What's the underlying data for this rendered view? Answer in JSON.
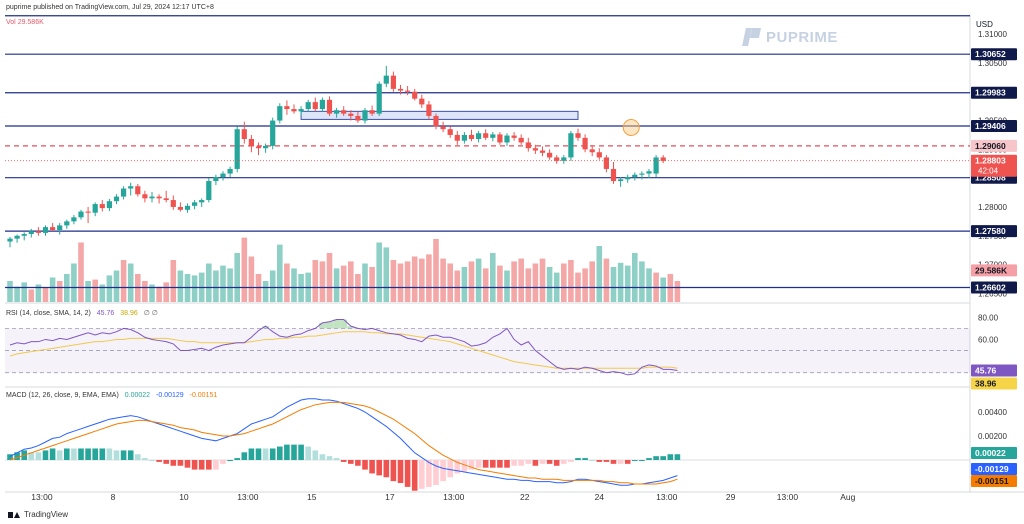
{
  "header": {
    "publisher_line": "puprime published on TradingView.com, Jul 29, 2024 12:17 UTC+8",
    "volume_label": "Vol",
    "volume_value": "29.586K"
  },
  "brand": {
    "name": "PUPRIME"
  },
  "footer": {
    "logo_text": "TradingView"
  },
  "chart_data": {
    "type": "candlestick",
    "currency": "USD",
    "price_axis": {
      "range": [
        1.2635,
        1.3135
      ],
      "ticks": [
        "1.31000",
        "1.30500",
        "1.30000",
        "1.29500",
        "1.29000",
        "1.28500",
        "1.28000",
        "1.27500",
        "1.27000",
        "1.26500"
      ]
    },
    "x_axis": {
      "labels": [
        "13:00",
        "8",
        "10",
        "13:00",
        "15",
        "17",
        "13:00",
        "22",
        "24",
        "13:00",
        "29",
        "13:00",
        "Aug"
      ],
      "label_slots": [
        4.5,
        14.5,
        24.5,
        33.5,
        42.5,
        53.5,
        62.5,
        72.5,
        83,
        92.5,
        101.5,
        109.5,
        118
      ]
    },
    "levels": [
      {
        "label": "1.30652",
        "value": 1.30652,
        "style": "solid",
        "color": "#1e2f8c"
      },
      {
        "label": "1.29983",
        "value": 1.29983,
        "style": "solid",
        "color": "#1e2f8c"
      },
      {
        "label": "1.29406",
        "value": 1.29406,
        "style": "solid",
        "color": "#1e2f8c"
      },
      {
        "label": "1.29060",
        "value": 1.2906,
        "style": "dashed",
        "color": "#e54f5c"
      },
      {
        "label": "1.28508",
        "value": 1.28508,
        "style": "solid",
        "color": "#1e2f8c"
      },
      {
        "label": "1.27580",
        "value": 1.2758,
        "style": "solid",
        "color": "#1e2f8c"
      },
      {
        "label": "1.26602",
        "value": 1.26602,
        "style": "solid",
        "color": "#1e2f8c"
      }
    ],
    "top_line": {
      "value": 1.3132
    },
    "current_price": {
      "label": "1.28803",
      "countdown": "42:04",
      "value": 1.28803
    },
    "volume_badge": {
      "label": "29.586K",
      "value": 1.269
    },
    "zone": {
      "from_slot": 41,
      "to_slot": 80,
      "top": 1.2966,
      "bottom": 1.2952
    },
    "marker": {
      "slot": 87.5,
      "value": 1.2938
    },
    "colors": {
      "up": "#26a69a",
      "down": "#ef5350",
      "vol_up": "#8fd0c6",
      "vol_down": "#f3a7a7"
    },
    "candles": [
      [
        1.274,
        1.2748,
        1.273,
        1.2745
      ],
      [
        1.2745,
        1.2752,
        1.2738,
        1.275
      ],
      [
        1.275,
        1.2756,
        1.2742,
        1.2753
      ],
      [
        1.2753,
        1.2762,
        1.2747,
        1.2758
      ],
      [
        1.2758,
        1.2765,
        1.275,
        1.2755
      ],
      [
        1.2755,
        1.2768,
        1.275,
        1.2765
      ],
      [
        1.2765,
        1.2772,
        1.2758,
        1.276
      ],
      [
        1.276,
        1.2772,
        1.2752,
        1.2768
      ],
      [
        1.2768,
        1.2778,
        1.2762,
        1.2775
      ],
      [
        1.2775,
        1.2786,
        1.277,
        1.2782
      ],
      [
        1.2782,
        1.2795,
        1.2778,
        1.2792
      ],
      [
        1.2792,
        1.28,
        1.2772,
        1.279
      ],
      [
        1.279,
        1.2808,
        1.2784,
        1.2805
      ],
      [
        1.2805,
        1.2812,
        1.2792,
        1.2798
      ],
      [
        1.2798,
        1.2814,
        1.2793,
        1.281
      ],
      [
        1.281,
        1.2822,
        1.2805,
        1.2818
      ],
      [
        1.2818,
        1.2836,
        1.2813,
        1.2832
      ],
      [
        1.2832,
        1.2842,
        1.282,
        1.2836
      ],
      [
        1.2836,
        1.284,
        1.2818,
        1.2822
      ],
      [
        1.2822,
        1.2828,
        1.2808,
        1.2815
      ],
      [
        1.2815,
        1.2826,
        1.2808,
        1.2818
      ],
      [
        1.2818,
        1.2822,
        1.2806,
        1.2815
      ],
      [
        1.2815,
        1.2828,
        1.2808,
        1.2812
      ],
      [
        1.2812,
        1.282,
        1.2795,
        1.28
      ],
      [
        1.28,
        1.2808,
        1.2792,
        1.2795
      ],
      [
        1.2795,
        1.2806,
        1.279,
        1.2802
      ],
      [
        1.2802,
        1.2812,
        1.2796,
        1.2808
      ],
      [
        1.2808,
        1.2815,
        1.28,
        1.2812
      ],
      [
        1.2812,
        1.285,
        1.2808,
        1.2845
      ],
      [
        1.2845,
        1.2856,
        1.2838,
        1.2852
      ],
      [
        1.2852,
        1.2862,
        1.2846,
        1.2858
      ],
      [
        1.2858,
        1.287,
        1.2852,
        1.2866
      ],
      [
        1.2866,
        1.294,
        1.286,
        1.2935
      ],
      [
        1.2935,
        1.2948,
        1.291,
        1.2918
      ],
      [
        1.2918,
        1.2925,
        1.2895,
        1.2905
      ],
      [
        1.2905,
        1.2912,
        1.289,
        1.2902
      ],
      [
        1.2902,
        1.291,
        1.2894,
        1.2906
      ],
      [
        1.2906,
        1.2955,
        1.29,
        1.295
      ],
      [
        1.295,
        1.298,
        1.2945,
        1.2975
      ],
      [
        1.2975,
        1.2985,
        1.296,
        1.297
      ],
      [
        1.297,
        1.2978,
        1.2962,
        1.2966
      ],
      [
        1.2966,
        1.2975,
        1.2958,
        1.297
      ],
      [
        1.297,
        1.2986,
        1.2965,
        1.2982
      ],
      [
        1.2982,
        1.299,
        1.2966,
        1.297
      ],
      [
        1.297,
        1.299,
        1.2965,
        1.2986
      ],
      [
        1.2986,
        1.2992,
        1.2958,
        1.2962
      ],
      [
        1.2962,
        1.2972,
        1.2955,
        1.2968
      ],
      [
        1.2968,
        1.2975,
        1.2958,
        1.2962
      ],
      [
        1.2962,
        1.2968,
        1.295,
        1.2958
      ],
      [
        1.2958,
        1.2965,
        1.2946,
        1.295
      ],
      [
        1.295,
        1.2972,
        1.2945,
        1.2968
      ],
      [
        1.2968,
        1.2976,
        1.2958,
        1.2962
      ],
      [
        1.2962,
        1.3018,
        1.2958,
        1.3014
      ],
      [
        1.3014,
        1.3045,
        1.3008,
        1.3028
      ],
      [
        1.3028,
        1.3035,
        1.3,
        1.3005
      ],
      [
        1.3005,
        1.3012,
        1.2995,
        1.3002
      ],
      [
        1.3002,
        1.301,
        1.2994,
        1.3
      ],
      [
        1.3,
        1.3005,
        1.2985,
        1.2988
      ],
      [
        1.2988,
        1.2995,
        1.2972,
        1.2978
      ],
      [
        1.2978,
        1.2984,
        1.2952,
        1.2958
      ],
      [
        1.2958,
        1.2962,
        1.2935,
        1.294
      ],
      [
        1.294,
        1.2948,
        1.293,
        1.2935
      ],
      [
        1.2935,
        1.294,
        1.292,
        1.2925
      ],
      [
        1.2925,
        1.2932,
        1.2908,
        1.2915
      ],
      [
        1.2915,
        1.293,
        1.291,
        1.2925
      ],
      [
        1.2925,
        1.2934,
        1.2914,
        1.2918
      ],
      [
        1.2918,
        1.2932,
        1.2912,
        1.2928
      ],
      [
        1.2928,
        1.2935,
        1.2916,
        1.292
      ],
      [
        1.292,
        1.293,
        1.2914,
        1.2926
      ],
      [
        1.2926,
        1.293,
        1.2908,
        1.2912
      ],
      [
        1.2912,
        1.2928,
        1.2906,
        1.2924
      ],
      [
        1.2924,
        1.293,
        1.2915,
        1.292
      ],
      [
        1.292,
        1.2926,
        1.2908,
        1.2912
      ],
      [
        1.2912,
        1.292,
        1.2896,
        1.2902
      ],
      [
        1.2902,
        1.2908,
        1.2892,
        1.2898
      ],
      [
        1.2898,
        1.2905,
        1.2888,
        1.2894
      ],
      [
        1.2894,
        1.29,
        1.2882,
        1.2886
      ],
      [
        1.2886,
        1.289,
        1.2875,
        1.288
      ],
      [
        1.288,
        1.289,
        1.2875,
        1.2886
      ],
      [
        1.2886,
        1.2932,
        1.288,
        1.2928
      ],
      [
        1.2928,
        1.2936,
        1.2915,
        1.292
      ],
      [
        1.292,
        1.2926,
        1.2895,
        1.29
      ],
      [
        1.29,
        1.2906,
        1.2888,
        1.2895
      ],
      [
        1.2895,
        1.2902,
        1.2882,
        1.2886
      ],
      [
        1.2886,
        1.289,
        1.286,
        1.2866
      ],
      [
        1.2866,
        1.2878,
        1.284,
        1.2845
      ],
      [
        1.2845,
        1.2852,
        1.2835,
        1.2848
      ],
      [
        1.2848,
        1.2856,
        1.2842,
        1.2852
      ],
      [
        1.2852,
        1.286,
        1.2846,
        1.2856
      ],
      [
        1.2856,
        1.2862,
        1.2848,
        1.2858
      ],
      [
        1.2858,
        1.2866,
        1.285,
        1.2862
      ],
      [
        1.2858,
        1.289,
        1.2852,
        1.2886
      ],
      [
        1.2886,
        1.289,
        1.2876,
        1.288
      ]
    ],
    "volumes": [
      0.3,
      0.22,
      0.28,
      0.18,
      0.25,
      0.2,
      0.35,
      0.3,
      0.4,
      0.55,
      0.85,
      0.3,
      0.32,
      0.25,
      0.38,
      0.45,
      0.6,
      0.55,
      0.4,
      0.3,
      0.25,
      0.22,
      0.28,
      0.6,
      0.45,
      0.4,
      0.38,
      0.42,
      0.55,
      0.45,
      0.52,
      0.48,
      0.7,
      0.92,
      0.65,
      0.4,
      0.3,
      0.45,
      0.82,
      0.55,
      0.48,
      0.4,
      0.42,
      0.6,
      0.58,
      0.7,
      0.48,
      0.52,
      0.58,
      0.4,
      0.55,
      0.5,
      0.85,
      0.78,
      0.6,
      0.55,
      0.58,
      0.65,
      0.62,
      0.68,
      0.9,
      0.62,
      0.55,
      0.45,
      0.5,
      0.58,
      0.62,
      0.48,
      0.7,
      0.52,
      0.45,
      0.58,
      0.62,
      0.48,
      0.55,
      0.62,
      0.5,
      0.42,
      0.55,
      0.6,
      0.42,
      0.48,
      0.58,
      0.8,
      0.62,
      0.5,
      0.56,
      0.52,
      0.7,
      0.58,
      0.48,
      0.42,
      0.35,
      0.4,
      0.3
    ],
    "volume_dir": [
      1,
      1,
      1,
      0,
      1,
      0,
      1,
      0,
      1,
      1,
      0,
      1,
      0,
      1,
      1,
      1,
      0,
      1,
      0,
      0,
      1,
      0,
      0,
      0,
      1,
      1,
      1,
      1,
      1,
      1,
      1,
      1,
      1,
      0,
      0,
      0,
      1,
      1,
      1,
      0,
      1,
      1,
      1,
      0,
      0,
      0,
      1,
      0,
      0,
      0,
      1,
      0,
      1,
      1,
      0,
      0,
      0,
      0,
      0,
      0,
      0,
      0,
      0,
      0,
      1,
      0,
      1,
      0,
      1,
      0,
      1,
      0,
      0,
      0,
      0,
      0,
      1,
      1,
      0,
      0,
      0,
      0,
      0,
      1,
      0,
      1,
      1,
      1,
      1,
      1,
      1,
      0,
      1,
      0,
      0
    ],
    "rsi": {
      "label": "RSI (14, close, SMA, 14, 2)",
      "value_label": "45.76",
      "sma_label": "38.96",
      "extra_label": "∅ ∅",
      "ticks": [
        "80.00",
        "60.00"
      ],
      "range": [
        18,
        92
      ],
      "band": [
        30,
        70
      ],
      "series": [
        55,
        57,
        56,
        58,
        58,
        60,
        59,
        61,
        60,
        62,
        64,
        66,
        64,
        66,
        65,
        67,
        70,
        69,
        66,
        62,
        60,
        59,
        58,
        56,
        50,
        50,
        51,
        52,
        50,
        53,
        55,
        56,
        57,
        57,
        62,
        68,
        72,
        67,
        63,
        62,
        64,
        65,
        68,
        70,
        75,
        76,
        78,
        78,
        72,
        70,
        69,
        70,
        68,
        66,
        65,
        64,
        61,
        60,
        58,
        63,
        64,
        62,
        62,
        60,
        58,
        54,
        55,
        57,
        62,
        65,
        70,
        60,
        55,
        58,
        50,
        45,
        40,
        35,
        33,
        34,
        33,
        35,
        34,
        32,
        30,
        31,
        30,
        28,
        29,
        35,
        37,
        36,
        33,
        33,
        32
      ],
      "sma": [
        45,
        47,
        48,
        49,
        50,
        51,
        52,
        53,
        54,
        55,
        56,
        57,
        58,
        58,
        59,
        60,
        60,
        61,
        61,
        61,
        61,
        61,
        61,
        60,
        59,
        58,
        58,
        57,
        57,
        57,
        57,
        57,
        57,
        57,
        58,
        59,
        60,
        60,
        61,
        61,
        62,
        62,
        63,
        63,
        64,
        65,
        66,
        67,
        67,
        67,
        67,
        66,
        66,
        65,
        65,
        65,
        64,
        63,
        62,
        61,
        60,
        59,
        58,
        56,
        54,
        52,
        50,
        48,
        46,
        44,
        42,
        40,
        39,
        38,
        37,
        36,
        35,
        34,
        34,
        34,
        34,
        34,
        34,
        34,
        34,
        34,
        34,
        34,
        34,
        34,
        35,
        35,
        35,
        35,
        34
      ]
    },
    "macd": {
      "label": "MACD (12, 26, close, 9, EMA, EMA)",
      "values_label": [
        "0.00022",
        "-0.00129",
        "-0.00151"
      ],
      "ticks": [
        "0.00400",
        "0.00200"
      ],
      "range": [
        -0.0025,
        0.006
      ],
      "badges": {
        "hist": "0.00022",
        "macd": "-0.00129",
        "signal": "-0.00151"
      },
      "macd_line": [
        0.0003,
        0.0006,
        0.0009,
        0.001,
        0.0012,
        0.0015,
        0.0018,
        0.0019,
        0.0022,
        0.0024,
        0.0026,
        0.0028,
        0.003,
        0.0032,
        0.0034,
        0.0035,
        0.0036,
        0.0037,
        0.0036,
        0.0034,
        0.0032,
        0.003,
        0.0028,
        0.0026,
        0.0024,
        0.0022,
        0.002,
        0.0018,
        0.0017,
        0.0016,
        0.0018,
        0.002,
        0.0022,
        0.0026,
        0.003,
        0.0032,
        0.0034,
        0.0036,
        0.004,
        0.0044,
        0.0047,
        0.005,
        0.0051,
        0.0051,
        0.005,
        0.005,
        0.0049,
        0.0047,
        0.0045,
        0.0043,
        0.004,
        0.0036,
        0.0032,
        0.0028,
        0.0023,
        0.0018,
        0.0012,
        0.0006,
        0.0002,
        -0.0002,
        -0.0005,
        -0.0007,
        -0.0008,
        -0.0009,
        -0.001,
        -0.0011,
        -0.0012,
        -0.0013,
        -0.0014,
        -0.0015,
        -0.0016,
        -0.0016,
        -0.0017,
        -0.0017,
        -0.0018,
        -0.0018,
        -0.0018,
        -0.0019,
        -0.0019,
        -0.0018,
        -0.0016,
        -0.0016,
        -0.0017,
        -0.0018,
        -0.0019,
        -0.002,
        -0.0021,
        -0.0021,
        -0.002,
        -0.002,
        -0.0019,
        -0.0018,
        -0.0017,
        -0.0015,
        -0.0013
      ],
      "signal_line": [
        0.0,
        0.0002,
        0.0004,
        0.0006,
        0.0008,
        0.001,
        0.0012,
        0.0014,
        0.0016,
        0.0018,
        0.002,
        0.0022,
        0.0024,
        0.0026,
        0.0028,
        0.003,
        0.0031,
        0.0032,
        0.0033,
        0.0033,
        0.0032,
        0.0031,
        0.003,
        0.0029,
        0.0027,
        0.0026,
        0.0025,
        0.0023,
        0.0022,
        0.0021,
        0.002,
        0.002,
        0.0021,
        0.0022,
        0.0024,
        0.0026,
        0.0028,
        0.003,
        0.0033,
        0.0036,
        0.0039,
        0.0042,
        0.0044,
        0.0046,
        0.0047,
        0.0048,
        0.0048,
        0.0048,
        0.0047,
        0.0046,
        0.0045,
        0.0043,
        0.004,
        0.0037,
        0.0034,
        0.003,
        0.0026,
        0.0022,
        0.0017,
        0.0012,
        0.0008,
        0.0004,
        0.0001,
        -0.0002,
        -0.0004,
        -0.0006,
        -0.0008,
        -0.0009,
        -0.001,
        -0.0011,
        -0.0012,
        -0.0013,
        -0.0014,
        -0.0015,
        -0.0015,
        -0.0016,
        -0.0016,
        -0.0016,
        -0.0017,
        -0.0017,
        -0.0017,
        -0.0017,
        -0.0017,
        -0.0017,
        -0.0018,
        -0.0018,
        -0.0019,
        -0.0019,
        -0.002,
        -0.002,
        -0.002,
        -0.002,
        -0.0019,
        -0.0018,
        -0.0016
      ]
    }
  }
}
